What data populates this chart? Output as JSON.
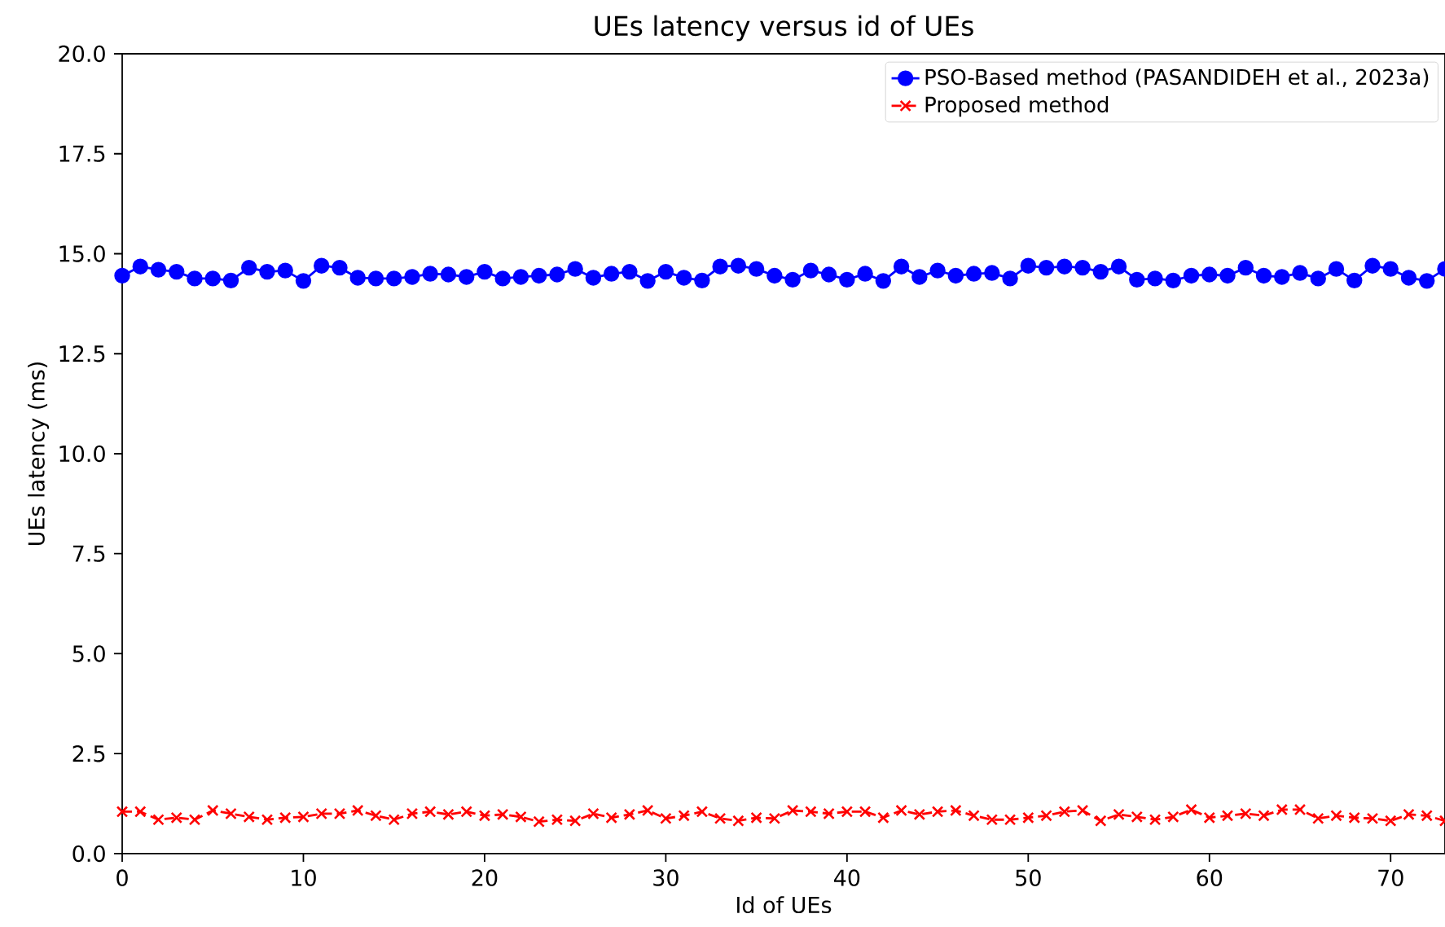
{
  "chart_data": {
    "type": "line",
    "title": "UEs latency versus id of UEs",
    "xlabel": "Id of UEs",
    "ylabel": "UEs latency (ms)",
    "x": [
      0,
      1,
      2,
      3,
      4,
      5,
      6,
      7,
      8,
      9,
      10,
      11,
      12,
      13,
      14,
      15,
      16,
      17,
      18,
      19,
      20,
      21,
      22,
      23,
      24,
      25,
      26,
      27,
      28,
      29,
      30,
      31,
      32,
      33,
      34,
      35,
      36,
      37,
      38,
      39,
      40,
      41,
      42,
      43,
      44,
      45,
      46,
      47,
      48,
      49,
      50,
      51,
      52,
      53,
      54,
      55,
      56,
      57,
      58,
      59,
      60,
      61,
      62,
      63,
      64,
      65,
      66,
      67,
      68,
      69,
      70,
      71,
      72,
      73
    ],
    "series": [
      {
        "name": "PSO-Based method (PASANDIDEH et al., 2023a)",
        "color": "#0000ff",
        "marker": "circle",
        "line_style": "solid",
        "values": [
          14.45,
          14.68,
          14.6,
          14.55,
          14.38,
          14.38,
          14.33,
          14.65,
          14.55,
          14.58,
          14.32,
          14.7,
          14.65,
          14.4,
          14.38,
          14.38,
          14.42,
          14.5,
          14.48,
          14.42,
          14.55,
          14.38,
          14.42,
          14.45,
          14.48,
          14.62,
          14.4,
          14.5,
          14.55,
          14.32,
          14.55,
          14.4,
          14.33,
          14.68,
          14.7,
          14.62,
          14.45,
          14.35,
          14.58,
          14.48,
          14.35,
          14.5,
          14.32,
          14.68,
          14.42,
          14.58,
          14.45,
          14.5,
          14.52,
          14.38,
          14.7,
          14.65,
          14.68,
          14.65,
          14.55,
          14.68,
          14.35,
          14.38,
          14.33,
          14.45,
          14.48,
          14.45,
          14.65,
          14.45,
          14.42,
          14.52,
          14.38,
          14.62,
          14.33,
          14.7,
          14.62,
          14.4,
          14.32,
          14.62
        ]
      },
      {
        "name": "Proposed method",
        "color": "#ff0000",
        "marker": "cross",
        "line_style": "dashed",
        "values": [
          1.05,
          1.05,
          0.85,
          0.9,
          0.85,
          1.08,
          1.0,
          0.92,
          0.85,
          0.9,
          0.92,
          1.0,
          1.0,
          1.08,
          0.95,
          0.85,
          1.0,
          1.05,
          0.98,
          1.05,
          0.95,
          0.98,
          0.92,
          0.8,
          0.85,
          0.82,
          1.0,
          0.9,
          0.98,
          1.08,
          0.88,
          0.95,
          1.05,
          0.88,
          0.82,
          0.9,
          0.88,
          1.08,
          1.05,
          1.0,
          1.05,
          1.05,
          0.9,
          1.08,
          0.98,
          1.05,
          1.08,
          0.95,
          0.85,
          0.85,
          0.9,
          0.95,
          1.05,
          1.08,
          0.82,
          0.98,
          0.92,
          0.85,
          0.92,
          1.1,
          0.9,
          0.95,
          1.0,
          0.95,
          1.1,
          1.1,
          0.88,
          0.95,
          0.9,
          0.88,
          0.82,
          0.98,
          0.95,
          0.82
        ]
      }
    ],
    "xlim": [
      0,
      73
    ],
    "ylim": [
      0,
      20
    ],
    "xticks": [
      0,
      10,
      20,
      30,
      40,
      50,
      60,
      70
    ],
    "yticks": [
      {
        "value": 0,
        "label": "0.0"
      },
      {
        "value": 2.5,
        "label": "2.5"
      },
      {
        "value": 5,
        "label": "5.0"
      },
      {
        "value": 7.5,
        "label": "7.5"
      },
      {
        "value": 10,
        "label": "10.0"
      },
      {
        "value": 12.5,
        "label": "12.5"
      },
      {
        "value": 15,
        "label": "15.0"
      },
      {
        "value": 17.5,
        "label": "17.5"
      },
      {
        "value": 20,
        "label": "20.0"
      }
    ],
    "legend": "top right",
    "grid": false
  }
}
